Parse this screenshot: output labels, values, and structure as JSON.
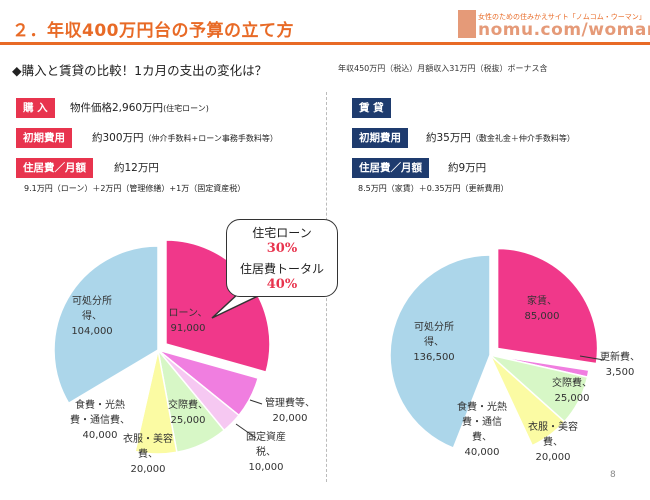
{
  "header": {
    "title": "２．年収400万円台の予算の立て方",
    "logo_tagline": "女性のための住みかえサイト「ノムコム・ウーマン」",
    "logo_text": "nomu.com/woman"
  },
  "subtitle": "◆購入と賃貸の比較！1カ月の支出の変化は？",
  "subtitle_note": "年収450万円（税込）月額収入31万円（税抜）ボーナス含",
  "left": {
    "purchase_label": "購 入",
    "purchase_value": "物件価格2,960万円",
    "purchase_value_small": "(住宅ローン)",
    "initial_label": "初期費用",
    "initial_value": "約300万円",
    "initial_value_small": "（仲介手数料+ローン事務手数料等）",
    "monthly_label": "住居費／月額",
    "monthly_value": "約12万円",
    "monthly_note": "9.1万円（ローン）＋2万円（管理修繕）+1万（固定資産税）",
    "callout": {
      "line1": "住宅ローン",
      "line2": "30%",
      "line3": "住居費トータル",
      "line4": "40%"
    }
  },
  "right": {
    "rent_label": "賃 貸",
    "initial_label": "初期費用",
    "initial_value": "約35万円",
    "initial_value_small": "（敷金礼金＋仲介手数料等）",
    "monthly_label": "住居費／月額",
    "monthly_value": "約9万円",
    "monthly_note": "8.5万円（家賃）＋0.35万円（更新費用）"
  },
  "page_number": "8",
  "chart_data": [
    {
      "type": "pie",
      "categories": [
        "ローン",
        "管理費等",
        "固定資産税",
        "交際費",
        "衣服・美容費",
        "食費・光熱費・通信費",
        "可処分所得"
      ],
      "values": [
        91000,
        20000,
        10000,
        25000,
        20000,
        40000,
        104000
      ],
      "labels": [
        [
          "ローン、",
          "91,000"
        ],
        [
          "管理費等、",
          "20,000"
        ],
        [
          "固定資産",
          "税、",
          "10,000"
        ],
        [
          "交際費、",
          "25,000"
        ],
        [
          "衣服・美容",
          "費、",
          "20,000"
        ],
        [
          "食費・光熱",
          "費・通信費、",
          "40,000"
        ],
        [
          "可処分所",
          "得、",
          "104,000"
        ]
      ],
      "colors": [
        "#f0388a",
        "#f07ee0",
        "#f6c8f2",
        "#d7f7c6",
        "#fbfba3",
        "#ffffff",
        "#acd6ea"
      ]
    },
    {
      "type": "pie",
      "categories": [
        "家賃",
        "更新費",
        "交際費",
        "衣服・美容費",
        "食費・光熱費・通信費",
        "可処分所得"
      ],
      "values": [
        85000,
        3500,
        25000,
        20000,
        40000,
        136500
      ],
      "labels": [
        [
          "家賃、",
          "85,000"
        ],
        [
          "更新費、",
          "3,500"
        ],
        [
          "交際費、",
          "25,000"
        ],
        [
          "衣服・美容",
          "費、",
          "20,000"
        ],
        [
          "食費・光熱",
          "費・通信",
          "費、",
          "40,000"
        ],
        [
          "可処分所",
          "得、",
          "136,500"
        ]
      ],
      "colors": [
        "#f0388a",
        "#f07ee0",
        "#d7f7c6",
        "#fbfba3",
        "#ffffff",
        "#acd6ea"
      ]
    }
  ]
}
